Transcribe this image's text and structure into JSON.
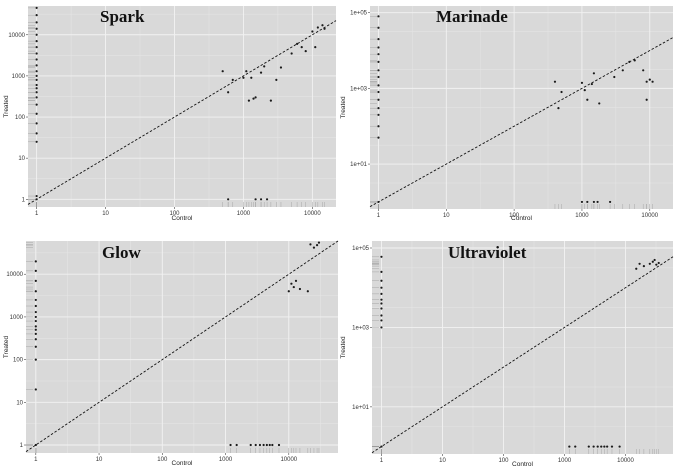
{
  "chart_data": [
    {
      "type": "scatter",
      "title": "Spark",
      "xlabel": "Control",
      "ylabel": "Treated",
      "scale": "log10",
      "xlim": [
        0.75,
        22000
      ],
      "ylim": [
        0.65,
        50000
      ],
      "xticks": [
        {
          "value": 1,
          "label": "1"
        },
        {
          "value": 10,
          "label": "10"
        },
        {
          "value": 100,
          "label": "100"
        },
        {
          "value": 1000,
          "label": "1000"
        },
        {
          "value": 10000,
          "label": "10000"
        }
      ],
      "yticks": [
        {
          "value": 1,
          "label": "1"
        },
        {
          "value": 10,
          "label": "10"
        },
        {
          "value": 100,
          "label": "100"
        },
        {
          "value": 1000,
          "label": "1000"
        },
        {
          "value": 10000,
          "label": "10000"
        }
      ],
      "grid": true,
      "reference_line": "y = x",
      "points": [
        [
          1,
          25
        ],
        [
          1,
          40
        ],
        [
          1,
          70
        ],
        [
          1,
          120
        ],
        [
          1,
          200
        ],
        [
          1,
          300
        ],
        [
          1,
          400
        ],
        [
          1,
          500
        ],
        [
          1,
          600
        ],
        [
          1,
          800
        ],
        [
          1,
          1000
        ],
        [
          1,
          1300
        ],
        [
          1,
          1800
        ],
        [
          1,
          2500
        ],
        [
          1,
          3500
        ],
        [
          1,
          5000
        ],
        [
          1,
          7000
        ],
        [
          1,
          10000
        ],
        [
          1,
          14000
        ],
        [
          1,
          20000
        ],
        [
          1,
          30000
        ],
        [
          1,
          45000
        ],
        [
          1,
          1
        ],
        [
          1,
          1.2
        ],
        [
          500,
          1300
        ],
        [
          600,
          400
        ],
        [
          700,
          800
        ],
        [
          1000,
          900
        ],
        [
          1100,
          1300
        ],
        [
          1200,
          250
        ],
        [
          1300,
          900
        ],
        [
          1400,
          280
        ],
        [
          1500,
          300
        ],
        [
          1800,
          1200
        ],
        [
          2000,
          1700
        ],
        [
          2500,
          250
        ],
        [
          3000,
          800
        ],
        [
          3500,
          1600
        ],
        [
          5000,
          3500
        ],
        [
          6000,
          6000
        ],
        [
          7000,
          5000
        ],
        [
          8000,
          4000
        ],
        [
          10000,
          12000
        ],
        [
          12000,
          15000
        ],
        [
          14000,
          17000
        ],
        [
          11000,
          5000
        ],
        [
          15000,
          14000
        ],
        [
          600,
          1
        ],
        [
          1500,
          1
        ],
        [
          1800,
          1
        ],
        [
          2200,
          1
        ]
      ]
    },
    {
      "type": "scatter",
      "title": "Marinade",
      "xlabel": "Control",
      "ylabel": "Treated",
      "scale": "log10",
      "xlim": [
        0.75,
        22000
      ],
      "ylim": [
        0.65,
        150000
      ],
      "xticks": [
        {
          "value": 1,
          "label": "1"
        },
        {
          "value": 10,
          "label": "10"
        },
        {
          "value": 100,
          "label": "100"
        },
        {
          "value": 1000,
          "label": "1000"
        },
        {
          "value": 10000,
          "label": "10000"
        }
      ],
      "yticks": [
        {
          "value": 10,
          "label": "1e+01"
        },
        {
          "value": 1000,
          "label": "1e+03"
        },
        {
          "value": 100000,
          "label": "1e+05"
        }
      ],
      "grid": true,
      "reference_line": "y = x",
      "points": [
        [
          1,
          50
        ],
        [
          1,
          100
        ],
        [
          1,
          200
        ],
        [
          1,
          300
        ],
        [
          1,
          500
        ],
        [
          1,
          800
        ],
        [
          1,
          1200
        ],
        [
          1,
          2000
        ],
        [
          1,
          3000
        ],
        [
          1,
          5000
        ],
        [
          1,
          8000
        ],
        [
          1,
          12000
        ],
        [
          1,
          20000
        ],
        [
          1,
          40000
        ],
        [
          1,
          80000
        ],
        [
          1,
          1
        ],
        [
          400,
          1500
        ],
        [
          450,
          300
        ],
        [
          500,
          800
        ],
        [
          1000,
          1400
        ],
        [
          1100,
          900
        ],
        [
          1200,
          500
        ],
        [
          1400,
          1300
        ],
        [
          1500,
          2500
        ],
        [
          1800,
          400
        ],
        [
          3000,
          2000
        ],
        [
          4000,
          3000
        ],
        [
          5000,
          5000
        ],
        [
          6000,
          5500
        ],
        [
          8000,
          3000
        ],
        [
          9000,
          1500
        ],
        [
          10000,
          1700
        ],
        [
          11000,
          1500
        ],
        [
          9000,
          500
        ],
        [
          1000,
          1
        ],
        [
          1200,
          1
        ],
        [
          1500,
          1
        ],
        [
          1700,
          1
        ],
        [
          2600,
          1
        ]
      ]
    },
    {
      "type": "scatter",
      "title": "Glow",
      "xlabel": "Control",
      "ylabel": "Treated",
      "scale": "log10",
      "xlim": [
        0.7,
        60000
      ],
      "ylim": [
        0.65,
        60000
      ],
      "xticks": [
        {
          "value": 1,
          "label": "1"
        },
        {
          "value": 10,
          "label": "10"
        },
        {
          "value": 100,
          "label": "100"
        },
        {
          "value": 1000,
          "label": "1000"
        },
        {
          "value": 10000,
          "label": "10000"
        }
      ],
      "yticks": [
        {
          "value": 1,
          "label": "1"
        },
        {
          "value": 10,
          "label": "10"
        },
        {
          "value": 100,
          "label": "100"
        },
        {
          "value": 1000,
          "label": "1000"
        },
        {
          "value": 10000,
          "label": "10000"
        }
      ],
      "grid": true,
      "reference_line": "y = x",
      "points": [
        [
          1,
          20
        ],
        [
          1,
          100
        ],
        [
          1,
          200
        ],
        [
          1,
          300
        ],
        [
          1,
          400
        ],
        [
          1,
          500
        ],
        [
          1,
          600
        ],
        [
          1,
          800
        ],
        [
          1,
          1000
        ],
        [
          1,
          1300
        ],
        [
          1,
          1800
        ],
        [
          1,
          2500
        ],
        [
          1,
          4000
        ],
        [
          1,
          7000
        ],
        [
          1,
          12000
        ],
        [
          1,
          20000
        ],
        [
          1,
          1
        ],
        [
          10000,
          4000
        ],
        [
          11000,
          6000
        ],
        [
          12000,
          5000
        ],
        [
          13000,
          7000
        ],
        [
          15000,
          4500
        ],
        [
          20000,
          4000
        ],
        [
          22000,
          50000
        ],
        [
          25000,
          42000
        ],
        [
          28000,
          48000
        ],
        [
          30000,
          55000
        ],
        [
          1200,
          1
        ],
        [
          1500,
          1
        ],
        [
          2500,
          1
        ],
        [
          3000,
          1
        ],
        [
          3500,
          1
        ],
        [
          4000,
          1
        ],
        [
          4500,
          1
        ],
        [
          5000,
          1
        ],
        [
          5500,
          1
        ],
        [
          7000,
          1
        ]
      ]
    },
    {
      "type": "scatter",
      "title": "Ultraviolet",
      "xlabel": "Control",
      "ylabel": "Treated",
      "scale": "log10",
      "xlim": [
        0.7,
        60000
      ],
      "ylim": [
        0.65,
        150000
      ],
      "xticks": [
        {
          "value": 1,
          "label": "1"
        },
        {
          "value": 10,
          "label": "10"
        },
        {
          "value": 100,
          "label": "100"
        },
        {
          "value": 1000,
          "label": "1000"
        },
        {
          "value": 10000,
          "label": "10000"
        }
      ],
      "yticks": [
        {
          "value": 10,
          "label": "1e+01"
        },
        {
          "value": 1000,
          "label": "1e+03"
        },
        {
          "value": 100000,
          "label": "1e+05"
        }
      ],
      "grid": true,
      "reference_line": "y = x",
      "points": [
        [
          1,
          1000
        ],
        [
          1,
          1500
        ],
        [
          1,
          2000
        ],
        [
          1,
          3000
        ],
        [
          1,
          4000
        ],
        [
          1,
          5000
        ],
        [
          1,
          7000
        ],
        [
          1,
          10000
        ],
        [
          1,
          15000
        ],
        [
          1,
          25000
        ],
        [
          1,
          60000
        ],
        [
          1,
          1
        ],
        [
          15000,
          30000
        ],
        [
          17000,
          40000
        ],
        [
          20000,
          35000
        ],
        [
          25000,
          40000
        ],
        [
          28000,
          45000
        ],
        [
          30000,
          50000
        ],
        [
          32000,
          38000
        ],
        [
          35000,
          42000
        ],
        [
          1200,
          1
        ],
        [
          1500,
          1
        ],
        [
          2500,
          1
        ],
        [
          3000,
          1
        ],
        [
          3500,
          1
        ],
        [
          4000,
          1
        ],
        [
          4500,
          1
        ],
        [
          5000,
          1
        ],
        [
          6000,
          1
        ],
        [
          8000,
          1
        ]
      ]
    }
  ]
}
